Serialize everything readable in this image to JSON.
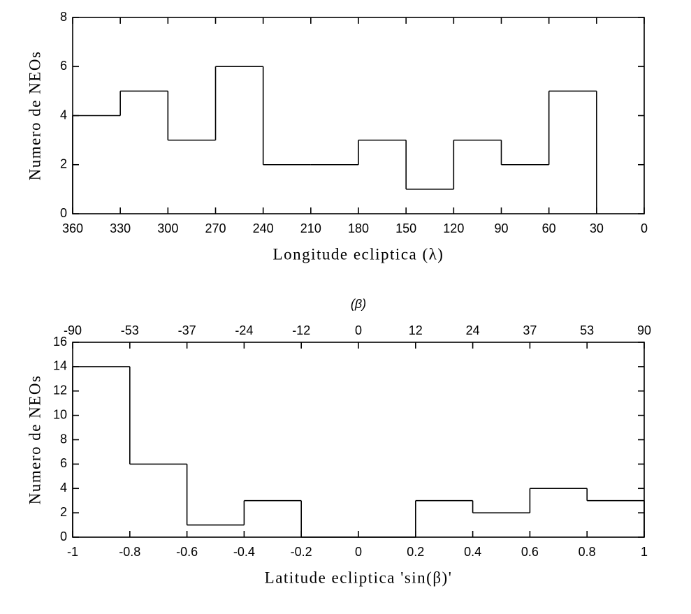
{
  "chart_data": [
    {
      "type": "histogram",
      "xlabel": "Longitude ecliptica (λ)",
      "ylabel": "Numero de NEOs",
      "bins": [
        360,
        330,
        300,
        270,
        240,
        210,
        180,
        150,
        120,
        90,
        60,
        30
      ],
      "counts": [
        4,
        5,
        3,
        6,
        2,
        2,
        3,
        1,
        3,
        2,
        5
      ],
      "color": "#000000",
      "xlim": [
        360,
        0
      ],
      "xticks": [
        360,
        330,
        300,
        270,
        240,
        210,
        180,
        150,
        120,
        90,
        60,
        30,
        0
      ],
      "ylim": [
        0,
        8
      ],
      "yticks": [
        0,
        2,
        4,
        6,
        8
      ]
    },
    {
      "type": "histogram",
      "xlabel": "Latitude ecliptica 'sin(β)'",
      "ylabel": "Numero de NEOs",
      "x2label": "(β)",
      "bins": [
        -1,
        -0.8,
        -0.6,
        -0.4,
        -0.2,
        0,
        0.2,
        0.4,
        0.6,
        0.8,
        1
      ],
      "counts": [
        14,
        6,
        1,
        3,
        0,
        0,
        3,
        2,
        4,
        3
      ],
      "color": "#000000",
      "xlim": [
        -1,
        1
      ],
      "xticks": [
        -1,
        -0.8,
        -0.6,
        -0.4,
        -0.2,
        0,
        0.2,
        0.4,
        0.6,
        0.8,
        1
      ],
      "x2ticks": [
        {
          "value": -1,
          "label": "-90"
        },
        {
          "value": -0.8,
          "label": "-53"
        },
        {
          "value": -0.6,
          "label": "-37"
        },
        {
          "value": -0.4,
          "label": "-24"
        },
        {
          "value": -0.2,
          "label": "-12"
        },
        {
          "value": 0,
          "label": "0"
        },
        {
          "value": 0.2,
          "label": "12"
        },
        {
          "value": 0.4,
          "label": "24"
        },
        {
          "value": 0.6,
          "label": "37"
        },
        {
          "value": 0.8,
          "label": "53"
        },
        {
          "value": 1,
          "label": "90"
        }
      ],
      "ylim": [
        0,
        16
      ],
      "yticks": [
        0,
        2,
        4,
        6,
        8,
        10,
        12,
        14,
        16
      ]
    }
  ]
}
